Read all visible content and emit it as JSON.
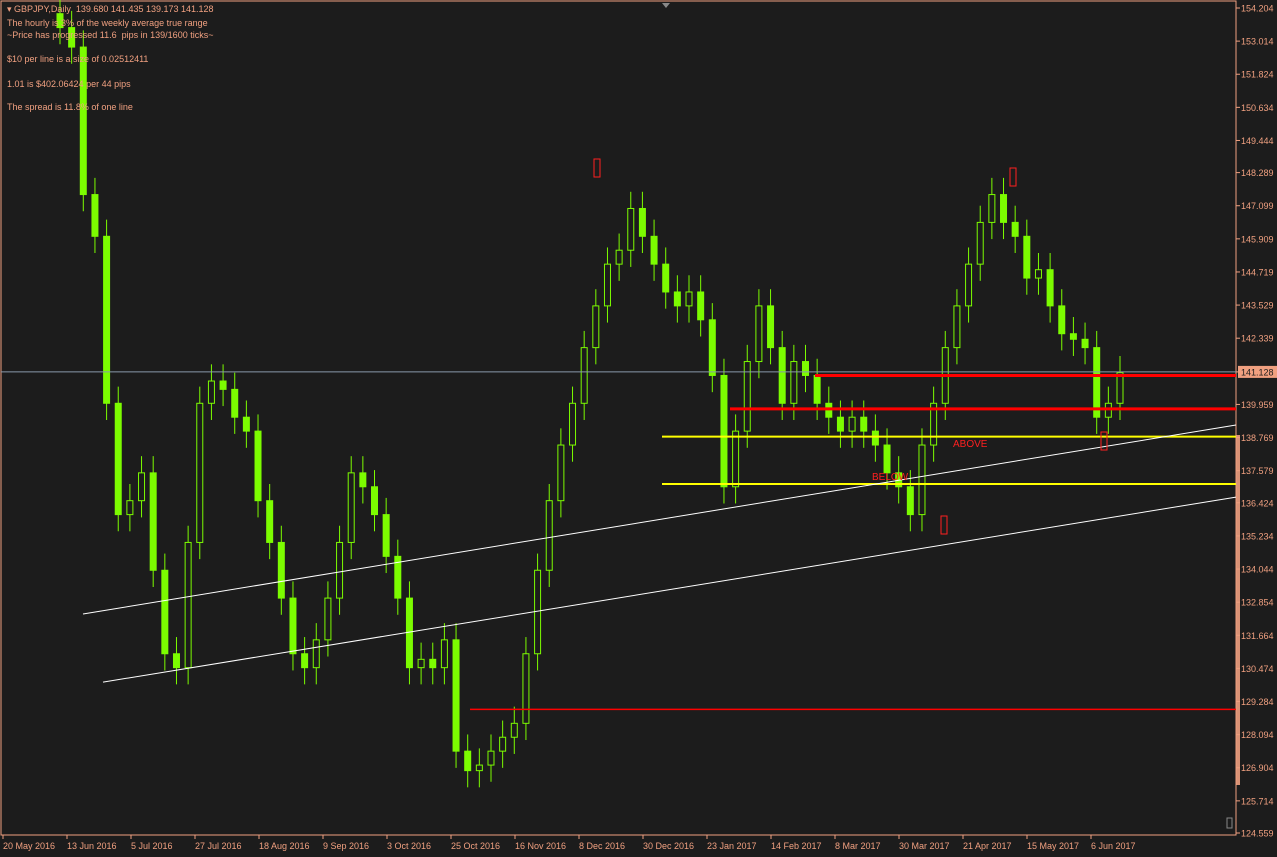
{
  "header": {
    "symbol_line": "GBPJPY,Daily  139.680 141.435 139.173 141.128",
    "info_lines": [
      "The hourly is 3% of the weekly average true range",
      "~Price has progressed 11.6  pips in 139/1600 ticks~",
      "$10 per line is a size of 0.02512411",
      "1.01 is $402.06424 per 44 pips",
      "The spread is 11.8% of one line"
    ]
  },
  "colors": {
    "background": "#1c1c1c",
    "candle": "#7cfc00",
    "axis": "#f0a080",
    "support_resistance": "#ff0000",
    "zone": "#ffff00",
    "trendline": "#ffffff",
    "price_line": "#8899aa"
  },
  "chart_data": {
    "type": "candlestick",
    "symbol": "GBPJPY",
    "timeframe": "Daily",
    "ylim": [
      124.559,
      154.204
    ],
    "y_ticks": [
      "154.204",
      "153.014",
      "151.824",
      "150.634",
      "149.444",
      "148.289",
      "147.099",
      "145.909",
      "144.719",
      "143.529",
      "142.339",
      "141.128",
      "139.959",
      "138.769",
      "137.579",
      "136.424",
      "135.234",
      "134.044",
      "132.854",
      "131.664",
      "130.474",
      "129.284",
      "128.094",
      "126.904",
      "125.714",
      "124.559"
    ],
    "current_price": "141.128",
    "x_ticks": [
      "20 May 2016",
      "13 Jun 2016",
      "5 Jul 2016",
      "27 Jul 2016",
      "18 Aug 2016",
      "9 Sep 2016",
      "3 Oct 2016",
      "25 Oct 2016",
      "16 Nov 2016",
      "8 Dec 2016",
      "30 Dec 2016",
      "23 Jan 2017",
      "14 Feb 2017",
      "8 Mar 2017",
      "30 Mar 2017",
      "21 Apr 2017",
      "15 May 2017",
      "6 Jun 2017"
    ],
    "closes_approx": [
      153.5,
      152.8,
      147.5,
      146,
      140,
      136,
      136.5,
      137.5,
      134,
      131,
      130.5,
      135,
      140,
      140.8,
      140.5,
      139.5,
      139,
      136.5,
      135,
      133,
      131,
      130.5,
      131.5,
      133,
      135,
      137.5,
      137,
      136,
      134.5,
      133,
      130.5,
      130.8,
      130.5,
      131.5,
      127.5,
      126.8,
      127,
      127.5,
      128,
      128.5,
      131,
      134,
      136.5,
      138.5,
      140,
      142,
      143.5,
      145,
      145.5,
      147,
      146,
      145,
      144,
      143.5,
      144,
      143,
      141,
      137,
      139,
      141.5,
      143.5,
      142,
      140,
      141.5,
      141,
      140,
      139.5,
      139,
      139.5,
      139,
      138.5,
      137.5,
      137,
      136,
      138.5,
      140,
      142,
      143.5,
      145,
      146.5,
      147.5,
      146.5,
      146,
      144.5,
      144.8,
      143.5,
      142.5,
      142.3,
      142,
      139.5,
      140,
      141.1
    ],
    "horizontal_lines": [
      {
        "price": 141.0,
        "color": "red"
      },
      {
        "price": 139.8,
        "color": "red"
      },
      {
        "price": 138.8,
        "color": "yellow"
      },
      {
        "price": 137.1,
        "color": "yellow"
      },
      {
        "price": 129.0,
        "color": "red"
      }
    ],
    "trendlines": [
      {
        "from_price": 132.43,
        "to_price": 139.22
      },
      {
        "from_price": 129.98,
        "to_price": 136.63
      }
    ],
    "annotations": [
      "ABOVE",
      "BELOW"
    ]
  }
}
